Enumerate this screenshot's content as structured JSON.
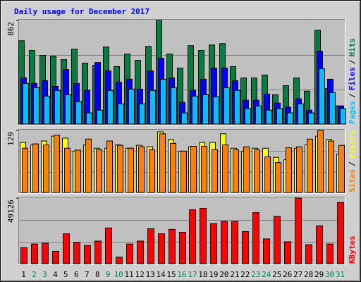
{
  "chart_data": [
    {
      "type": "bar",
      "title": "Daily usage for December 2017",
      "ylim": [
        0,
        862
      ],
      "yticks": [
        862
      ],
      "legend_separator": "/",
      "series": [
        {
          "name": "Hits",
          "color": "#008040",
          "values": [
            693,
            612,
            571,
            565,
            536,
            623,
            507,
            489,
            641,
            478,
            582,
            530,
            646,
            862,
            582,
            466,
            652,
            612,
            658,
            670,
            478,
            384,
            384,
            408,
            245,
            320,
            384,
            274,
            780,
            297,
            151
          ]
        },
        {
          "name": "Files",
          "color": "#0000ff",
          "values": [
            384,
            338,
            361,
            314,
            454,
            338,
            280,
            512,
            443,
            349,
            373,
            291,
            443,
            547,
            384,
            181,
            280,
            373,
            466,
            466,
            361,
            198,
            198,
            250,
            175,
            140,
            210,
            116,
            606,
            373,
            151
          ]
        },
        {
          "name": "Pages",
          "color": "#00c0ff",
          "values": [
            338,
            303,
            233,
            280,
            245,
            186,
            93,
            116,
            280,
            169,
            291,
            169,
            280,
            373,
            303,
            93,
            233,
            245,
            227,
            303,
            280,
            128,
            151,
            116,
            128,
            93,
            169,
            93,
            460,
            262,
            128
          ]
        }
      ]
    },
    {
      "type": "bar",
      "ylim": [
        0,
        129
      ],
      "yticks": [
        129
      ],
      "legend_separator": "/",
      "series": [
        {
          "name": "Visits",
          "color": "#ffff00",
          "values": [
            104,
            99,
            107,
            117,
            113,
            86,
            99,
            92,
            92,
            99,
            92,
            98,
            95,
            126,
            110,
            86,
            95,
            104,
            104,
            122,
            92,
            85,
            92,
            92,
            73,
            68,
            92,
            99,
            117,
            110,
            80
          ]
        },
        {
          "name": "Sites",
          "color": "#ff8000",
          "values": [
            92,
            101,
            99,
            119,
            92,
            88,
            111,
            89,
            107,
            98,
            92,
            95,
            89,
            122,
            102,
            86,
            96,
            96,
            89,
            99,
            89,
            95,
            89,
            74,
            62,
            93,
            95,
            111,
            129,
            107,
            98
          ]
        }
      ]
    },
    {
      "type": "bar",
      "ylim": [
        0,
        49126
      ],
      "yticks": [
        49126
      ],
      "series": [
        {
          "name": "KBytes",
          "color": "#ff0000",
          "values": [
            12008,
            14737,
            15283,
            9279,
            22378,
            15828,
            13645,
            16920,
            26744,
            4912,
            14737,
            16920,
            26198,
            22378,
            25653,
            23469,
            40389,
            41481,
            30019,
            31656,
            31656,
            24015,
            38206,
            18557,
            35477,
            16374,
            49126,
            14191,
            28382,
            14737,
            45847
          ]
        }
      ],
      "categories": [
        "1",
        "2",
        "3",
        "4",
        "5",
        "6",
        "7",
        "8",
        "9",
        "10",
        "11",
        "12",
        "13",
        "14",
        "15",
        "16",
        "17",
        "18",
        "19",
        "20",
        "21",
        "22",
        "23",
        "24",
        "25",
        "26",
        "27",
        "28",
        "29",
        "30",
        "31"
      ],
      "category_colors": [
        "#000000",
        "#00805c",
        "#00805c",
        "#000000",
        "#000000",
        "#000000",
        "#000000",
        "#000000",
        "#00805c",
        "#00805c",
        "#000000",
        "#000000",
        "#000000",
        "#000000",
        "#000000",
        "#00805c",
        "#00805c",
        "#000000",
        "#000000",
        "#000000",
        "#000000",
        "#000000",
        "#00805c",
        "#00805c",
        "#000000",
        "#000000",
        "#000000",
        "#000000",
        "#000000",
        "#00805c",
        "#00805c"
      ]
    }
  ]
}
